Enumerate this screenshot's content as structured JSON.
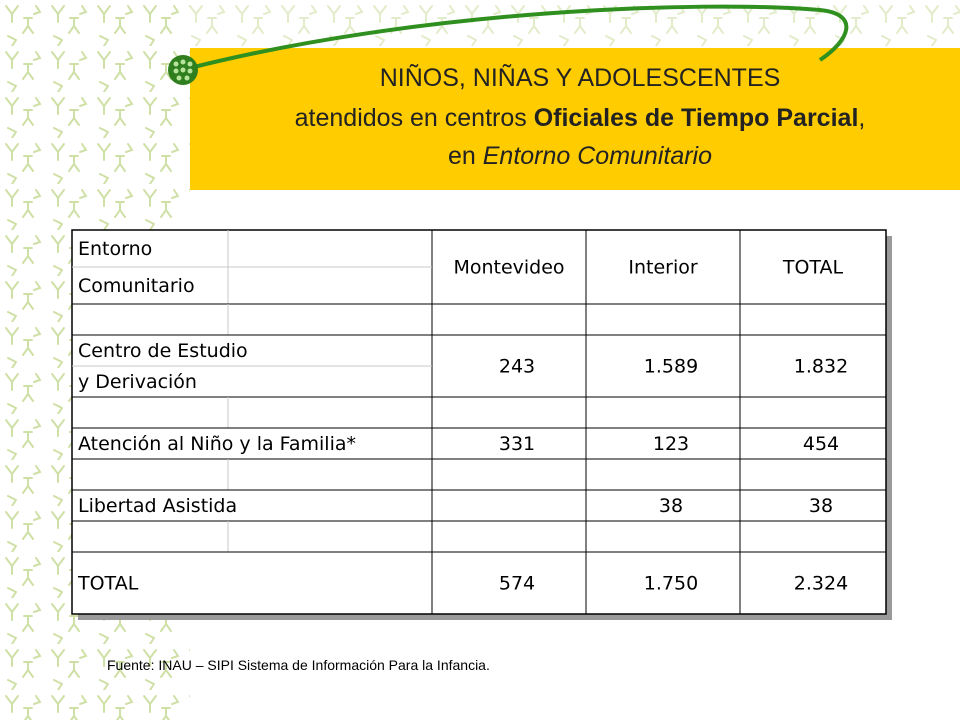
{
  "title": {
    "lines": [
      [
        {
          "text": "NIÑOS, NIÑAS Y ADOLESCENTES"
        }
      ],
      [
        {
          "text": "atendidos en centros "
        },
        {
          "text": "Oficiales de Tiempo Parcial",
          "style": "bold"
        },
        {
          "text": ","
        }
      ],
      [
        {
          "text": "en "
        },
        {
          "text": "Entorno Comunitario",
          "style": "italic"
        }
      ]
    ]
  },
  "table": {
    "header": {
      "label": [
        "Entorno",
        "Comunitario"
      ],
      "columns": [
        "Montevideo",
        "Interior",
        "TOTAL"
      ]
    },
    "rows": [
      {
        "label": [
          "Centro de Estudio",
          "y Derivación"
        ],
        "values": [
          "243",
          "1.589",
          "1.832"
        ]
      },
      {
        "label": [
          "Atención al Niño y la Familia*"
        ],
        "values": [
          "331",
          "123",
          "454"
        ]
      },
      {
        "label": [
          "Libertad Asistida"
        ],
        "values": [
          null,
          "38",
          "38"
        ]
      },
      {
        "label": [
          "TOTAL"
        ],
        "values": [
          "574",
          "1.750",
          "2.324"
        ]
      }
    ]
  },
  "footnote": "Fuente: INAU – SIPI  Sistema de Información Para la Infancia."
}
